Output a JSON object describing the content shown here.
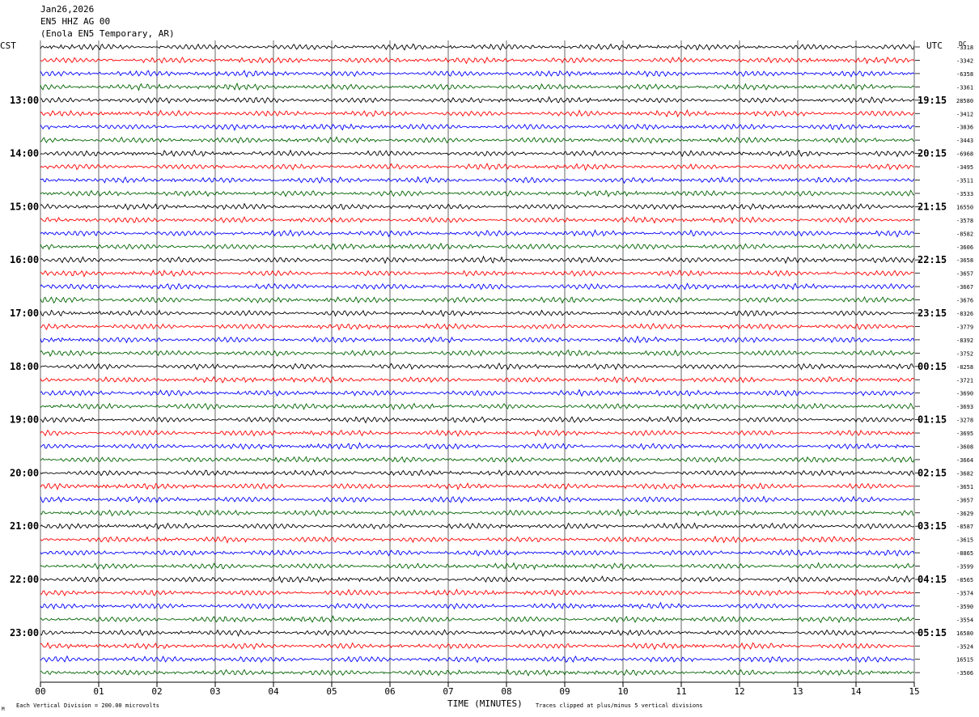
{
  "header": {
    "date": "Jan26,2026",
    "channel": "EN5 HHZ AG 00",
    "station": "(Enola EN5 Temporary, AR)"
  },
  "left_tz": "CST",
  "right_tz": "UTC",
  "dc_label": "DC",
  "footer": {
    "scale_note": "Each Vertical Division =  200.00 microvolts",
    "clip_note": "Traces clipped at plus/minus 5 vertical divisions",
    "corner_mark": "M"
  },
  "colors": {
    "cycle": [
      "#000000",
      "#ff0000",
      "#0000ff",
      "#006400"
    ],
    "grid": "#000000"
  },
  "chart_data": {
    "type": "line",
    "xlabel": "TIME (MINUTES)",
    "xlim": [
      0,
      15
    ],
    "x_ticks": [
      "00",
      "01",
      "02",
      "03",
      "04",
      "05",
      "06",
      "07",
      "08",
      "09",
      "10",
      "11",
      "12",
      "13",
      "14",
      "15"
    ],
    "left_hour_labels": [
      "13:00",
      "14:00",
      "15:00",
      "16:00",
      "17:00",
      "18:00",
      "19:00",
      "20:00",
      "21:00",
      "22:00",
      "23:00"
    ],
    "right_hour_labels": [
      "19:15",
      "20:15",
      "21:15",
      "22:15",
      "23:15",
      "00:15",
      "01:15",
      "02:15",
      "03:15",
      "04:15",
      "05:15"
    ],
    "trace_count": 48,
    "traces_per_hour": 4,
    "dc_values": [
      "-3318",
      "-3342",
      "-6358",
      "-3361",
      "28580",
      "-3412",
      "-3836",
      "-3443",
      "-6968",
      "-3495",
      "-3511",
      "-3533",
      "16550",
      "-3578",
      "-8582",
      "-3606",
      "-3658",
      "-3657",
      "-3667",
      "-3676",
      "-8326",
      "-3779",
      "-8392",
      "-3752",
      "-8258",
      "-3721",
      "-3690",
      "-3693",
      "-3278",
      "-3695",
      "-3608",
      "-3664",
      "-3682",
      "-3651",
      "-3657",
      "-3629",
      "-8587",
      "-3615",
      "-8865",
      "-3599",
      "-8565",
      "-3574",
      "-3590",
      "-3554",
      "16580",
      "-3524",
      "16515",
      "-3506"
    ]
  }
}
